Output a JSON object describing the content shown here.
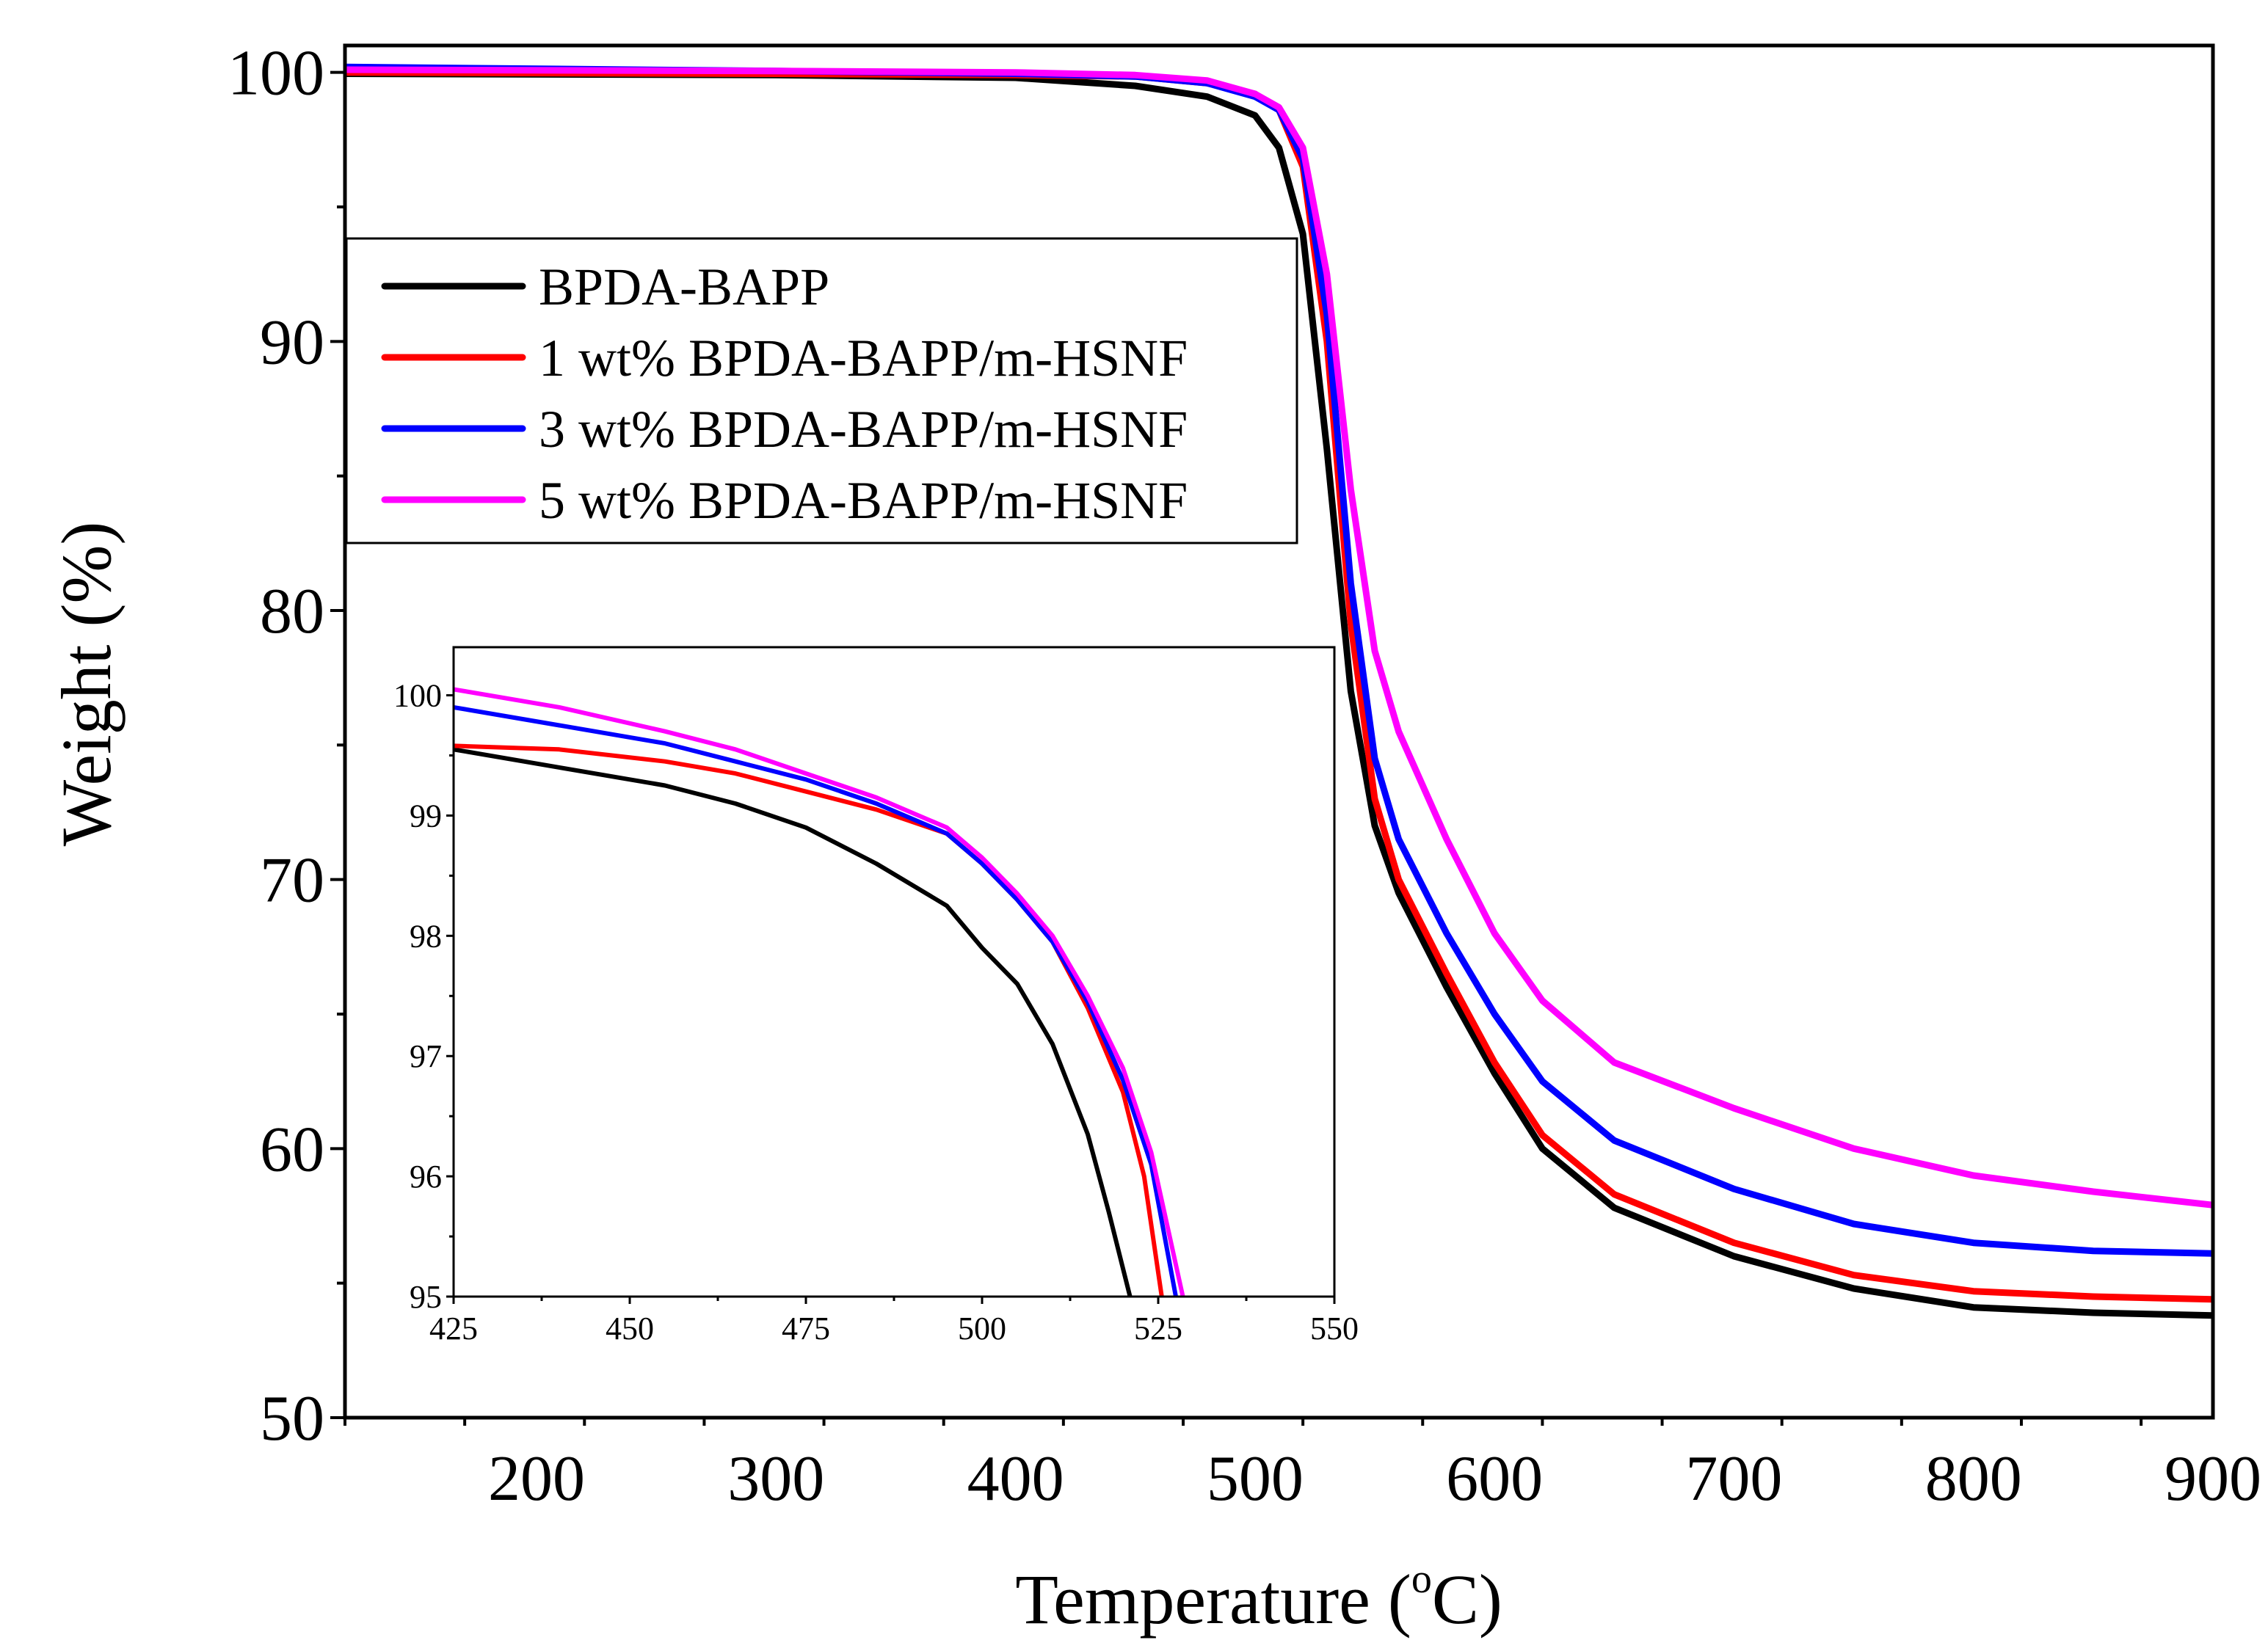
{
  "chart_data": [
    {
      "id": "main",
      "type": "line",
      "title": "",
      "xlabel_prefix": "Temperature (",
      "xlabel_sup": "o",
      "xlabel_suffix": "C)",
      "ylabel": "Weight (%)",
      "xlim": [
        120,
        900
      ],
      "ylim": [
        50,
        101
      ],
      "xticks": [
        200,
        300,
        400,
        500,
        600,
        700,
        800,
        900
      ],
      "yticks": [
        50,
        60,
        70,
        80,
        90,
        100
      ],
      "legend_position": "upper-left",
      "series": [
        {
          "name": "BPDA-BAPP",
          "color": "#000000",
          "x": [
            120,
            300,
            400,
            450,
            480,
            500,
            510,
            520,
            530,
            540,
            550,
            560,
            580,
            600,
            620,
            650,
            700,
            750,
            800,
            850,
            900
          ],
          "y": [
            99.95,
            99.9,
            99.8,
            99.5,
            99.1,
            98.4,
            97.2,
            94.0,
            86.0,
            77.0,
            72.0,
            69.5,
            66.0,
            62.8,
            60.0,
            57.8,
            56.0,
            54.8,
            54.1,
            53.9,
            53.8
          ]
        },
        {
          "name": "1 wt% BPDA-BAPP/m-HSNF",
          "color": "#ff0000",
          "x": [
            120,
            300,
            400,
            450,
            480,
            500,
            510,
            520,
            530,
            540,
            550,
            560,
            580,
            600,
            620,
            650,
            700,
            750,
            800,
            850,
            900
          ],
          "y": [
            100.0,
            99.95,
            99.9,
            99.85,
            99.6,
            99.2,
            98.6,
            96.5,
            90.0,
            79.5,
            73.0,
            70.0,
            66.5,
            63.2,
            60.5,
            58.3,
            56.5,
            55.3,
            54.7,
            54.5,
            54.4
          ]
        },
        {
          "name": "3 wt% BPDA-BAPP/m-HSNF",
          "color": "#0000ff",
          "x": [
            120,
            300,
            400,
            450,
            480,
            500,
            510,
            520,
            530,
            540,
            550,
            560,
            580,
            600,
            620,
            650,
            700,
            750,
            800,
            850,
            900
          ],
          "y": [
            100.2,
            100.05,
            99.95,
            99.85,
            99.6,
            99.1,
            98.6,
            96.8,
            91.0,
            81.0,
            74.5,
            71.5,
            68.0,
            65.0,
            62.5,
            60.3,
            58.5,
            57.2,
            56.5,
            56.2,
            56.1
          ]
        },
        {
          "name": "5 wt% BPDA-BAPP/m-HSNF",
          "color": "#ff00ff",
          "x": [
            120,
            300,
            400,
            450,
            480,
            500,
            510,
            520,
            530,
            540,
            550,
            560,
            580,
            600,
            620,
            650,
            700,
            750,
            800,
            850,
            900
          ],
          "y": [
            100.1,
            100.05,
            100.0,
            99.9,
            99.7,
            99.2,
            98.7,
            97.2,
            92.5,
            84.5,
            78.5,
            75.5,
            71.5,
            68.0,
            65.5,
            63.2,
            61.5,
            60.0,
            59.0,
            58.4,
            57.9
          ]
        }
      ]
    },
    {
      "id": "inset",
      "type": "line",
      "title": "",
      "xlabel": "",
      "ylabel": "",
      "xlim": [
        425,
        550
      ],
      "ylim": [
        95,
        100.4
      ],
      "xticks": [
        425,
        450,
        475,
        500,
        525,
        550
      ],
      "yticks": [
        95,
        96,
        97,
        98,
        99,
        100
      ],
      "series": [
        {
          "name": "BPDA-BAPP",
          "color": "#000000",
          "x": [
            425,
            440,
            455,
            465,
            475,
            485,
            495,
            500,
            505,
            510,
            515,
            518,
            521
          ],
          "y": [
            99.55,
            99.4,
            99.25,
            99.1,
            98.9,
            98.6,
            98.25,
            97.9,
            97.6,
            97.1,
            96.35,
            95.7,
            95.0
          ]
        },
        {
          "name": "1 wt% BPDA-BAPP/m-HSNF",
          "color": "#ff0000",
          "x": [
            425,
            440,
            455,
            465,
            475,
            485,
            495,
            500,
            505,
            510,
            515,
            520,
            523,
            525.5
          ],
          "y": [
            99.58,
            99.55,
            99.45,
            99.35,
            99.2,
            99.05,
            98.85,
            98.6,
            98.3,
            97.95,
            97.4,
            96.7,
            96.0,
            95.0
          ]
        },
        {
          "name": "3 wt% BPDA-BAPP/m-HSNF",
          "color": "#0000ff",
          "x": [
            425,
            440,
            455,
            465,
            475,
            485,
            495,
            500,
            505,
            510,
            515,
            520,
            524,
            527.5
          ],
          "y": [
            99.9,
            99.75,
            99.6,
            99.45,
            99.3,
            99.1,
            98.85,
            98.6,
            98.3,
            97.95,
            97.45,
            96.8,
            96.1,
            95.0
          ]
        },
        {
          "name": "5 wt% BPDA-BAPP/m-HSNF",
          "color": "#ff00ff",
          "x": [
            425,
            440,
            455,
            465,
            475,
            485,
            495,
            500,
            505,
            510,
            515,
            520,
            524,
            528.5
          ],
          "y": [
            100.05,
            99.9,
            99.7,
            99.55,
            99.35,
            99.15,
            98.9,
            98.65,
            98.35,
            98.0,
            97.5,
            96.9,
            96.2,
            95.0
          ]
        }
      ]
    }
  ]
}
